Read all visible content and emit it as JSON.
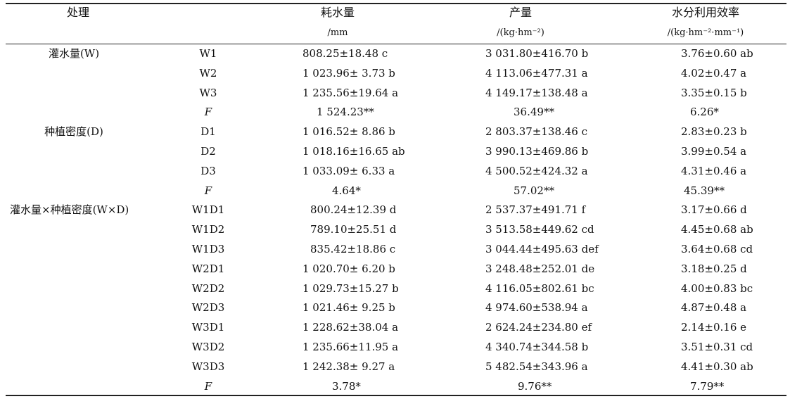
{
  "header": {
    "treatment": "处理",
    "water_title": "耗水量",
    "water_unit": "/mm",
    "yield_title": "产量",
    "yield_unit": "/(kg·hm⁻²)",
    "wue_title": "水分利用效率",
    "wue_unit": "/(kg·hm⁻²·mm⁻¹)"
  },
  "groups": {
    "irrigation": "灌水量(W)",
    "density": "种植密度(D)",
    "interaction": "灌水量×种植密度(W×D)"
  },
  "rows": [
    {
      "level": "W1",
      "water": "808.25±18.48 c",
      "yield": "3 031.80±416.70 b",
      "wue": "3.76±0.60 ab"
    },
    {
      "level": "W2",
      "water": "1 023.96± 3.73 b",
      "yield": "4 113.06±477.31 a",
      "wue": "4.02±0.47 a"
    },
    {
      "level": "W3",
      "water": "1 235.56±19.64 a",
      "yield": "4 149.17±138.48 a",
      "wue": "3.35±0.15 b"
    },
    {
      "level": "F",
      "water": "1 524.23**",
      "yield": "36.49**",
      "wue": "6.26*"
    },
    {
      "level": "D1",
      "water": "1 016.52± 8.86 b",
      "yield": "2 803.37±138.46 c",
      "wue": "2.83±0.23 b"
    },
    {
      "level": "D2",
      "water": "1 018.16±16.65 ab",
      "yield": "3 990.13±469.86 b",
      "wue": "3.99±0.54 a"
    },
    {
      "level": "D3",
      "water": "1 033.09± 6.33 a",
      "yield": "4 500.52±424.32 a",
      "wue": "4.31±0.46 a"
    },
    {
      "level": "F",
      "water": "4.64*",
      "yield": "57.02**",
      "wue": "45.39**"
    },
    {
      "level": "W1D1",
      "water": "800.24±12.39 d",
      "yield": "2 537.37±491.71 f",
      "wue": "3.17±0.66 d"
    },
    {
      "level": "W1D2",
      "water": "789.10±25.51 d",
      "yield": "3 513.58±449.62 cd",
      "wue": "4.45±0.68 ab"
    },
    {
      "level": "W1D3",
      "water": "835.42±18.86 c",
      "yield": "3 044.44±495.63 def",
      "wue": "3.64±0.68 cd"
    },
    {
      "level": "W2D1",
      "water": "1 020.70± 6.20 b",
      "yield": "3 248.48±252.01 de",
      "wue": "3.18±0.25 d"
    },
    {
      "level": "W2D2",
      "water": "1 029.73±15.27 b",
      "yield": "4 116.05±802.61 bc",
      "wue": "4.00±0.83 bc"
    },
    {
      "level": "W2D3",
      "water": "1 021.46± 9.25 b",
      "yield": "4 974.60±538.94 a",
      "wue": "4.87±0.48 a"
    },
    {
      "level": "W3D1",
      "water": "1 228.62±38.04 a",
      "yield": "2 624.24±234.80 ef",
      "wue": "2.14±0.16 e"
    },
    {
      "level": "W3D2",
      "water": "1 235.66±11.95 a",
      "yield": "4 340.74±344.58 b",
      "wue": "3.51±0.31 cd"
    },
    {
      "level": "W3D3",
      "water": "1 242.38± 9.27 a",
      "yield": "5 482.54±343.96 a",
      "wue": "4.41±0.30 ab"
    },
    {
      "level": "F",
      "water": "3.78*",
      "yield": "9.76**",
      "wue": "7.79**"
    }
  ]
}
